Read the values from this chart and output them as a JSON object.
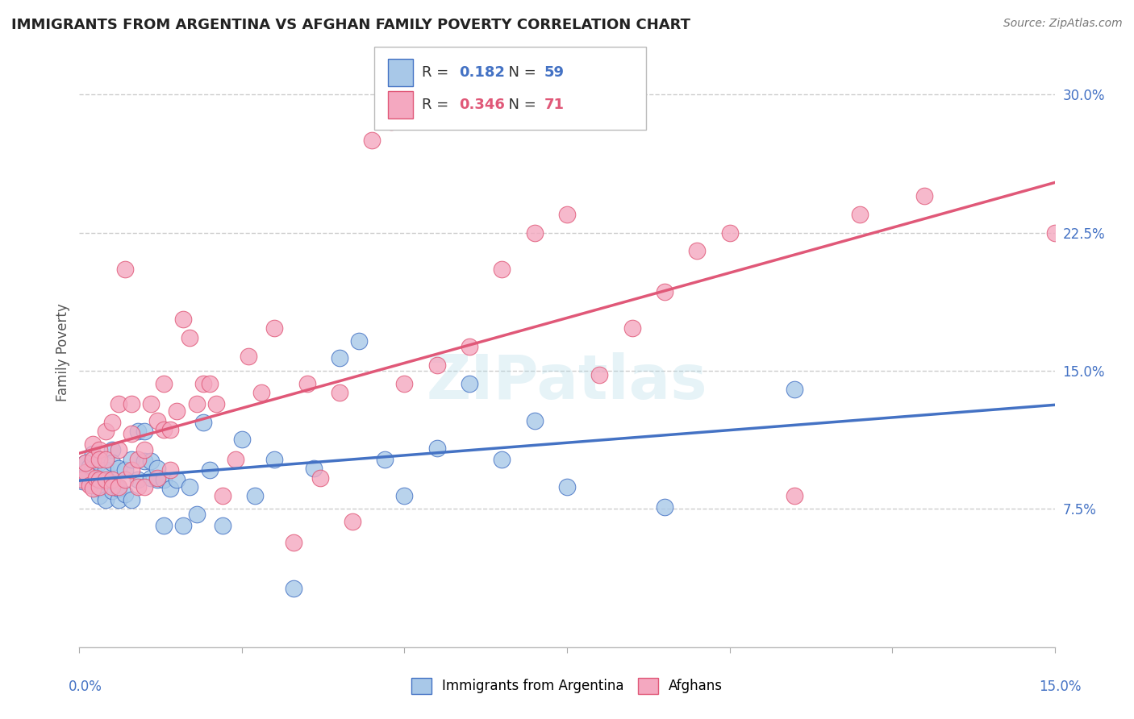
{
  "title": "IMMIGRANTS FROM ARGENTINA VS AFGHAN FAMILY POVERTY CORRELATION CHART",
  "source": "Source: ZipAtlas.com",
  "ylabel": "Family Poverty",
  "ylabel_right_ticks": [
    "7.5%",
    "15.0%",
    "22.5%",
    "30.0%"
  ],
  "ylabel_right_values": [
    0.075,
    0.15,
    0.225,
    0.3
  ],
  "xlim": [
    0.0,
    0.15
  ],
  "ylim": [
    0.0,
    0.32
  ],
  "r1": 0.182,
  "n1": 59,
  "r2": 0.346,
  "n2": 71,
  "color_argentina": "#a8c8e8",
  "color_afghan": "#f4a8c0",
  "color_line_argentina": "#4472c4",
  "color_line_afghan": "#e05878",
  "watermark": "ZIPatlas",
  "argentina_x": [
    0.0005,
    0.001,
    0.001,
    0.0015,
    0.002,
    0.002,
    0.002,
    0.0025,
    0.003,
    0.003,
    0.003,
    0.003,
    0.004,
    0.004,
    0.004,
    0.005,
    0.005,
    0.005,
    0.006,
    0.006,
    0.006,
    0.007,
    0.007,
    0.008,
    0.008,
    0.009,
    0.009,
    0.01,
    0.01,
    0.011,
    0.011,
    0.012,
    0.012,
    0.013,
    0.013,
    0.014,
    0.015,
    0.016,
    0.017,
    0.018,
    0.019,
    0.02,
    0.022,
    0.025,
    0.027,
    0.03,
    0.033,
    0.036,
    0.04,
    0.043,
    0.047,
    0.05,
    0.055,
    0.06,
    0.065,
    0.07,
    0.075,
    0.09,
    0.11
  ],
  "argentina_y": [
    0.09,
    0.093,
    0.1,
    0.098,
    0.097,
    0.088,
    0.105,
    0.091,
    0.09,
    0.086,
    0.1,
    0.082,
    0.096,
    0.09,
    0.08,
    0.107,
    0.1,
    0.085,
    0.097,
    0.08,
    0.086,
    0.096,
    0.083,
    0.102,
    0.08,
    0.117,
    0.091,
    0.117,
    0.101,
    0.092,
    0.101,
    0.097,
    0.091,
    0.091,
    0.066,
    0.086,
    0.091,
    0.066,
    0.087,
    0.072,
    0.122,
    0.096,
    0.066,
    0.113,
    0.082,
    0.102,
    0.032,
    0.097,
    0.157,
    0.166,
    0.102,
    0.082,
    0.108,
    0.143,
    0.102,
    0.123,
    0.087,
    0.076,
    0.14
  ],
  "afghan_x": [
    0.0005,
    0.001,
    0.001,
    0.0015,
    0.002,
    0.002,
    0.002,
    0.0025,
    0.003,
    0.003,
    0.003,
    0.003,
    0.004,
    0.004,
    0.004,
    0.005,
    0.005,
    0.005,
    0.006,
    0.006,
    0.006,
    0.007,
    0.007,
    0.008,
    0.008,
    0.008,
    0.009,
    0.009,
    0.01,
    0.01,
    0.011,
    0.012,
    0.012,
    0.013,
    0.013,
    0.014,
    0.014,
    0.015,
    0.016,
    0.017,
    0.018,
    0.019,
    0.02,
    0.021,
    0.022,
    0.024,
    0.026,
    0.028,
    0.03,
    0.033,
    0.035,
    0.037,
    0.04,
    0.042,
    0.045,
    0.048,
    0.05,
    0.055,
    0.06,
    0.065,
    0.07,
    0.075,
    0.08,
    0.085,
    0.09,
    0.095,
    0.1,
    0.11,
    0.12,
    0.13,
    0.15
  ],
  "afghan_y": [
    0.091,
    0.095,
    0.1,
    0.088,
    0.102,
    0.11,
    0.086,
    0.092,
    0.107,
    0.091,
    0.087,
    0.102,
    0.117,
    0.091,
    0.102,
    0.122,
    0.091,
    0.087,
    0.132,
    0.087,
    0.107,
    0.091,
    0.205,
    0.132,
    0.096,
    0.116,
    0.102,
    0.087,
    0.087,
    0.107,
    0.132,
    0.123,
    0.092,
    0.118,
    0.143,
    0.118,
    0.096,
    0.128,
    0.178,
    0.168,
    0.132,
    0.143,
    0.143,
    0.132,
    0.082,
    0.102,
    0.158,
    0.138,
    0.173,
    0.057,
    0.143,
    0.092,
    0.138,
    0.068,
    0.275,
    0.285,
    0.143,
    0.153,
    0.163,
    0.205,
    0.225,
    0.235,
    0.148,
    0.173,
    0.193,
    0.215,
    0.225,
    0.082,
    0.235,
    0.245,
    0.225
  ]
}
